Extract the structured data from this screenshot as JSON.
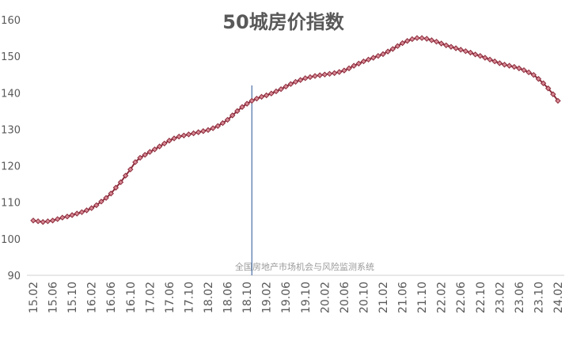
{
  "chart_data": {
    "type": "line",
    "title": "50城房价指数",
    "annotation": "全国房地产市场机会与风险监测系统",
    "categories": [
      "15.02",
      null,
      null,
      null,
      "15.06",
      null,
      null,
      null,
      "15.10",
      null,
      null,
      null,
      "16.02",
      null,
      null,
      null,
      "16.06",
      null,
      null,
      null,
      "16.10",
      null,
      null,
      null,
      "17.02",
      null,
      null,
      null,
      "17.06",
      null,
      null,
      null,
      "17.10",
      null,
      null,
      null,
      "18.02",
      null,
      null,
      null,
      "18.06",
      null,
      null,
      null,
      "18.10",
      null,
      null,
      null,
      "19.02",
      null,
      null,
      null,
      "19.06",
      null,
      null,
      null,
      "19.10",
      null,
      null,
      null,
      "20.02",
      null,
      null,
      null,
      "20.06",
      null,
      null,
      null,
      "20.10",
      null,
      null,
      null,
      "21.02",
      null,
      null,
      null,
      "21.06",
      null,
      null,
      null,
      "21.10",
      null,
      null,
      null,
      "22.02",
      null,
      null,
      null,
      "22.06",
      null,
      null,
      null,
      "22.10",
      null,
      null,
      null,
      "23.02",
      null,
      null,
      null,
      "23.06",
      null,
      null,
      null,
      "23.10",
      null,
      null,
      null,
      "24.02"
    ],
    "series": [
      {
        "color": "#8b2a3a",
        "marker_fill": "#d98a96",
        "values": [
          105,
          104.8,
          104.6,
          104.8,
          105,
          105.4,
          105.8,
          106.1,
          106.5,
          106.9,
          107.3,
          107.8,
          108.4,
          109.2,
          110.2,
          111.2,
          112.4,
          114,
          115.5,
          117.3,
          119,
          121,
          122.2,
          123,
          123.8,
          124.5,
          125.3,
          126.1,
          126.9,
          127.5,
          128,
          128.3,
          128.6,
          128.9,
          129.2,
          129.5,
          129.8,
          130.3,
          130.9,
          131.7,
          132.6,
          133.8,
          135,
          136.1,
          137,
          137.8,
          138.4,
          138.9,
          139.3,
          139.8,
          140.4,
          141,
          141.7,
          142.4,
          143,
          143.5,
          144,
          144.3,
          144.6,
          144.8,
          145,
          145.2,
          145.4,
          145.7,
          146.1,
          146.7,
          147.4,
          148,
          148.6,
          149.1,
          149.6,
          150.1,
          150.6,
          151.3,
          152,
          152.8,
          153.6,
          154.2,
          154.7,
          155,
          155,
          154.8,
          154.4,
          154,
          153.5,
          153,
          152.6,
          152.2,
          151.8,
          151.4,
          151,
          150.5,
          150.1,
          149.6,
          149.1,
          148.6,
          148.1,
          147.7,
          147.4,
          147.1,
          146.7,
          146.2,
          145.6,
          144.9,
          143.8,
          142.6,
          141.2,
          139.6,
          137.8
        ]
      }
    ],
    "vline": 45,
    "vline_color": "#4a6fa5",
    "ylim": [
      90,
      160
    ],
    "yticks": [
      90,
      100,
      110,
      120,
      130,
      140,
      150,
      160
    ],
    "grid": false
  }
}
